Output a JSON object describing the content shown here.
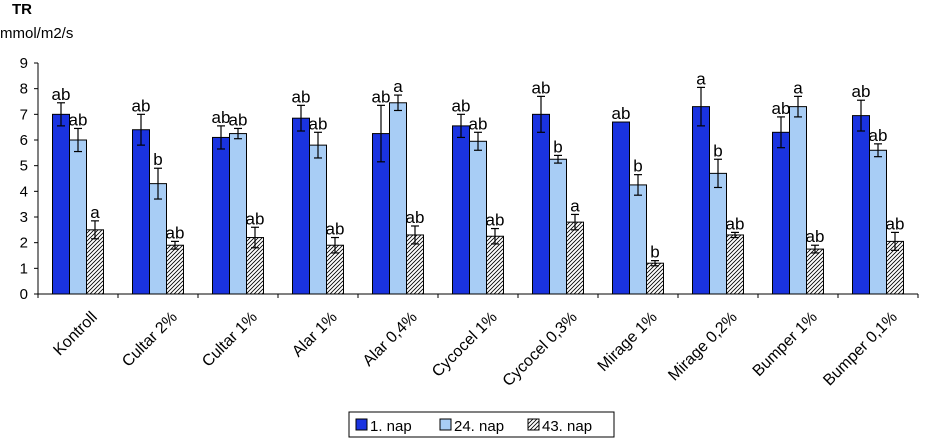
{
  "chart_data": {
    "type": "bar",
    "title": "TR",
    "ylabel": "mmol/m2/s",
    "xlabel": "",
    "ylim": [
      0,
      9
    ],
    "yticks": [
      0,
      1,
      2,
      3,
      4,
      5,
      6,
      7,
      8,
      9
    ],
    "grid": false,
    "legend_position": "bottom",
    "categories": [
      "Kontroll",
      "Cultar 2%",
      "Cultar 1%",
      "Alar 1%",
      "Alar 0,4%",
      "Cycocel 1%",
      "Cycocel 0,3%",
      "Mirage 1%",
      "Mirage 0,2%",
      "Bumper 1%",
      "Bumper 0,1%"
    ],
    "series": [
      {
        "name": "1. nap",
        "color": "#1a33e0",
        "pattern": "solid",
        "values": [
          7.0,
          6.4,
          6.1,
          6.85,
          6.25,
          6.55,
          7.0,
          6.7,
          7.3,
          6.3,
          6.95
        ],
        "errors": [
          0.45,
          0.6,
          0.45,
          0.5,
          1.1,
          0.45,
          0.7,
          0.0,
          0.75,
          0.6,
          0.6
        ],
        "labels": [
          "ab",
          "ab",
          "ab",
          "ab",
          "ab",
          "ab",
          "ab",
          "ab",
          "a",
          "ab",
          "ab"
        ]
      },
      {
        "name": "24. nap",
        "color": "#a8cdf5",
        "pattern": "solid",
        "values": [
          6.0,
          4.3,
          6.25,
          5.8,
          7.45,
          5.95,
          5.25,
          4.25,
          4.7,
          7.3,
          5.6
        ],
        "errors": [
          0.45,
          0.6,
          0.2,
          0.5,
          0.3,
          0.35,
          0.15,
          0.4,
          0.55,
          0.4,
          0.25
        ],
        "labels": [
          "ab",
          "b",
          "ab",
          "ab",
          "a",
          "ab",
          "b",
          "b",
          "b",
          "a",
          "ab"
        ]
      },
      {
        "name": "43. nap",
        "color": "#ffffff",
        "pattern": "hatch",
        "values": [
          2.5,
          1.9,
          2.2,
          1.9,
          2.3,
          2.25,
          2.8,
          1.2,
          2.3,
          1.75,
          2.05
        ],
        "errors": [
          0.35,
          0.15,
          0.4,
          0.3,
          0.35,
          0.3,
          0.3,
          0.1,
          0.1,
          0.15,
          0.35
        ],
        "labels": [
          "a",
          "ab",
          "ab",
          "ab",
          "ab",
          "ab",
          "a",
          "b",
          "ab",
          "ab",
          "ab"
        ]
      }
    ]
  }
}
